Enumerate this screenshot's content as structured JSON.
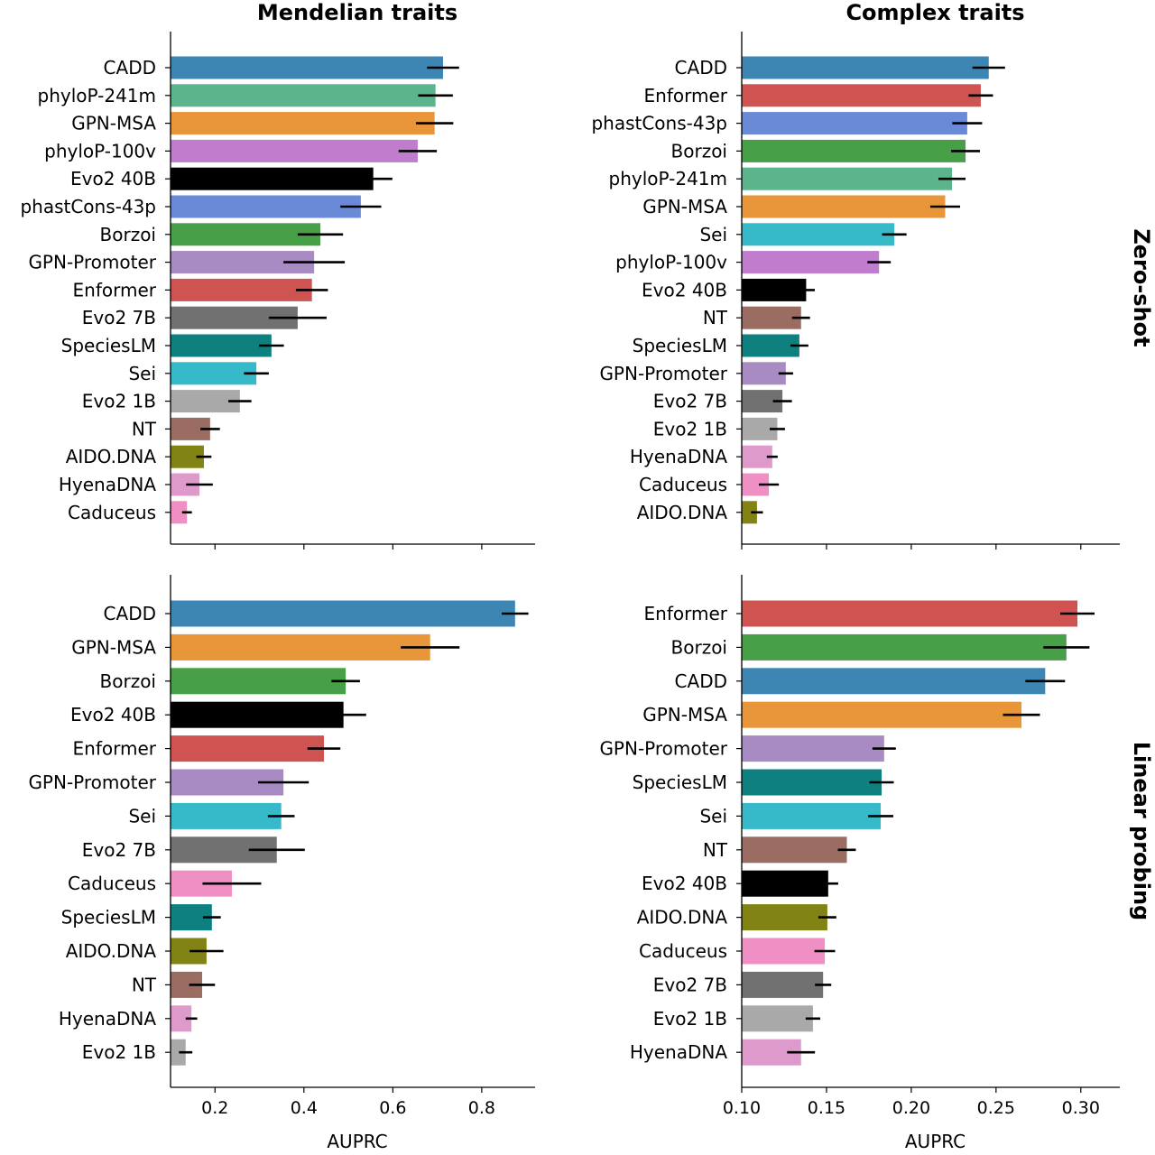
{
  "chart_data": [
    {
      "type": "bar",
      "orientation": "horizontal",
      "title": "Mendelian traits",
      "row_label": "Zero-shot",
      "xlabel": "",
      "xlim": [
        0.1,
        0.92
      ],
      "xticks": [
        0.2,
        0.4,
        0.6,
        0.8
      ],
      "show_tick_labels": false,
      "categories": [
        "CADD",
        "phyloP-241m",
        "GPN-MSA",
        "phyloP-100v",
        "Evo2 40B",
        "phastCons-43p",
        "Borzoi",
        "GPN-Promoter",
        "Enformer",
        "Evo2 7B",
        "SpeciesLM",
        "Sei",
        "Evo2 1B",
        "NT",
        "AIDO.DNA",
        "HyenaDNA",
        "Caduceus"
      ],
      "values": [
        0.713,
        0.696,
        0.694,
        0.656,
        0.556,
        0.528,
        0.437,
        0.423,
        0.418,
        0.386,
        0.327,
        0.293,
        0.256,
        0.189,
        0.175,
        0.165,
        0.137
      ],
      "errors": [
        0.036,
        0.039,
        0.042,
        0.043,
        0.043,
        0.046,
        0.051,
        0.069,
        0.036,
        0.065,
        0.028,
        0.028,
        0.026,
        0.022,
        0.017,
        0.03,
        0.011
      ]
    },
    {
      "type": "bar",
      "orientation": "horizontal",
      "title": "Complex traits",
      "row_label": "Zero-shot",
      "xlabel": "",
      "xlim": [
        0.1,
        0.323
      ],
      "xticks": [
        0.1,
        0.15,
        0.2,
        0.25,
        0.3
      ],
      "show_tick_labels": false,
      "categories": [
        "CADD",
        "Enformer",
        "phastCons-43p",
        "Borzoi",
        "phyloP-241m",
        "GPN-MSA",
        "Sei",
        "phyloP-100v",
        "Evo2 40B",
        "NT",
        "SpeciesLM",
        "GPN-Promoter",
        "Evo2 7B",
        "Evo2 1B",
        "HyenaDNA",
        "Caduceus",
        "AIDO.DNA"
      ],
      "values": [
        0.2457,
        0.241,
        0.233,
        0.232,
        0.224,
        0.22,
        0.19,
        0.181,
        0.138,
        0.135,
        0.134,
        0.126,
        0.124,
        0.121,
        0.118,
        0.116,
        0.109
      ],
      "errors": [
        0.0096,
        0.0072,
        0.0088,
        0.0085,
        0.008,
        0.0088,
        0.0072,
        0.0069,
        0.0051,
        0.0053,
        0.0053,
        0.0043,
        0.0056,
        0.0045,
        0.0032,
        0.0059,
        0.0035
      ]
    },
    {
      "type": "bar",
      "orientation": "horizontal",
      "title": "",
      "row_label": "Linear probing",
      "xlabel": "AUPRC",
      "xlim": [
        0.1,
        0.92
      ],
      "xticks": [
        0.2,
        0.4,
        0.6,
        0.8
      ],
      "tick_labels": [
        "0.2",
        "0.4",
        "0.6",
        "0.8"
      ],
      "show_tick_labels": true,
      "categories": [
        "CADD",
        "GPN-MSA",
        "Borzoi",
        "Evo2 40B",
        "Enformer",
        "GPN-Promoter",
        "Sei",
        "Evo2 7B",
        "Caduceus",
        "SpeciesLM",
        "AIDO.DNA",
        "NT",
        "HyenaDNA",
        "Evo2 1B"
      ],
      "values": [
        0.875,
        0.684,
        0.494,
        0.489,
        0.445,
        0.354,
        0.349,
        0.339,
        0.238,
        0.193,
        0.181,
        0.171,
        0.147,
        0.134
      ],
      "errors": [
        0.03,
        0.066,
        0.032,
        0.051,
        0.037,
        0.057,
        0.03,
        0.063,
        0.066,
        0.02,
        0.038,
        0.029,
        0.013,
        0.015
      ]
    },
    {
      "type": "bar",
      "orientation": "horizontal",
      "title": "",
      "row_label": "Linear probing",
      "xlabel": "AUPRC",
      "xlim": [
        0.1,
        0.323
      ],
      "xticks": [
        0.1,
        0.15,
        0.2,
        0.25,
        0.3
      ],
      "tick_labels": [
        "0.10",
        "0.15",
        "0.20",
        "0.25",
        "0.30"
      ],
      "show_tick_labels": true,
      "categories": [
        "Enformer",
        "Borzoi",
        "CADD",
        "GPN-MSA",
        "GPN-Promoter",
        "SpeciesLM",
        "Sei",
        "NT",
        "Evo2 40B",
        "AIDO.DNA",
        "Caduceus",
        "Evo2 7B",
        "Evo2 1B",
        "HyenaDNA"
      ],
      "values": [
        0.298,
        0.2915,
        0.279,
        0.265,
        0.184,
        0.1825,
        0.182,
        0.162,
        0.151,
        0.1505,
        0.149,
        0.148,
        0.142,
        0.135
      ],
      "errors": [
        0.0101,
        0.0136,
        0.0117,
        0.0109,
        0.0069,
        0.0072,
        0.0074,
        0.0053,
        0.0059,
        0.0053,
        0.0061,
        0.0048,
        0.0043,
        0.0082
      ]
    }
  ],
  "colors": {
    "CADD": "#3d86b4",
    "phyloP-241m": "#5bb48b",
    "GPN-MSA": "#e9963b",
    "phyloP-100v": "#c07ccd",
    "Evo2 40B": "#000000",
    "phastCons-43p": "#6a8ad8",
    "Borzoi": "#47a047",
    "GPN-Promoter": "#a78bc2",
    "Enformer": "#cf5350",
    "Evo2 7B": "#717171",
    "SpeciesLM": "#0f8080",
    "Sei": "#36b9c9",
    "Evo2 1B": "#a9a9a9",
    "NT": "#9b6c62",
    "AIDO.DNA": "#818315",
    "HyenaDNA": "#de9acb",
    "Caduceus": "#f08fc4"
  }
}
